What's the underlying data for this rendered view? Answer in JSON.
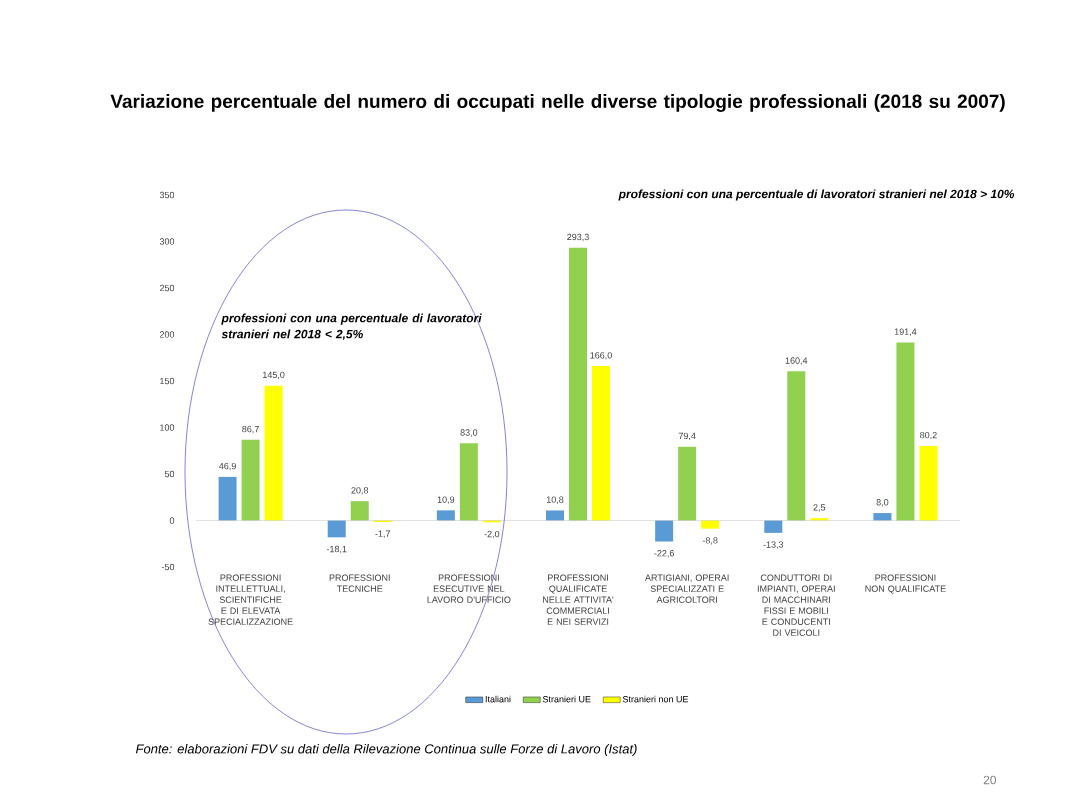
{
  "chart_data": {
    "type": "bar",
    "title": "Variazione percentuale del numero di occupati nelle diverse tipologie professionali (2018 su 2007)",
    "categories": [
      "PROFESSIONI INTELLETTUALI, SCIENTIFICHE E DI ELEVATA SPECIALIZZAZIONE",
      "PROFESSIONI TECNICHE",
      "PROFESSIONI ESECUTIVE NEL LAVORO D'UFFICIO",
      "PROFESSIONI QUALIFICATE NELLE ATTIVITA' COMMERCIALI E NEI SERVIZI",
      "ARTIGIANI, OPERAI SPECIALIZZATI E AGRICOLTORI",
      "CONDUTTORI DI IMPIANTI, OPERAI DI MACCHINARI FISSI E MOBILI E CONDUCENTI DI VEICOLI",
      "PROFESSIONI NON QUALIFICATE"
    ],
    "series": [
      {
        "name": "Italiani",
        "color": "#5b9bd5",
        "values": [
          46.9,
          -18.1,
          10.9,
          10.8,
          -22.6,
          -13.3,
          8.0
        ],
        "value_labels": [
          "46,9",
          "-18,1",
          "10,9",
          "10,8",
          "-22,6",
          "-13,3",
          "8,0"
        ]
      },
      {
        "name": "Stranieri UE",
        "color": "#92d050",
        "values": [
          86.7,
          20.8,
          83.0,
          293.3,
          79.4,
          160.4,
          191.4
        ],
        "value_labels": [
          "86,7",
          "20,8",
          "83,0",
          "293,3",
          "79,4",
          "160,4",
          "191,4"
        ]
      },
      {
        "name": "Stranieri non UE",
        "color": "#ffff00",
        "values": [
          145.0,
          -1.7,
          -2.0,
          166.0,
          -8.8,
          2.5,
          80.2
        ],
        "value_labels": [
          "145,0",
          "-1,7",
          "-2,0",
          "166,0",
          "-8,8",
          "2,5",
          "80,2"
        ]
      }
    ],
    "ylim": [
      -50,
      350
    ],
    "yticks": [
      -50,
      0,
      50,
      100,
      150,
      200,
      250,
      300,
      350
    ],
    "legend": "bottom",
    "annotations": [
      "professioni con una percentuale di lavoratori stranieri nel 2018 > 10%",
      "professioni con una percentuale di lavoratori stranieri nel 2018 < 2,5%",
      "Fonte: elaborazioni FDV su dati della Rilevazione Continua sulle Forze di Lavoro (Istat)",
      "20"
    ]
  }
}
